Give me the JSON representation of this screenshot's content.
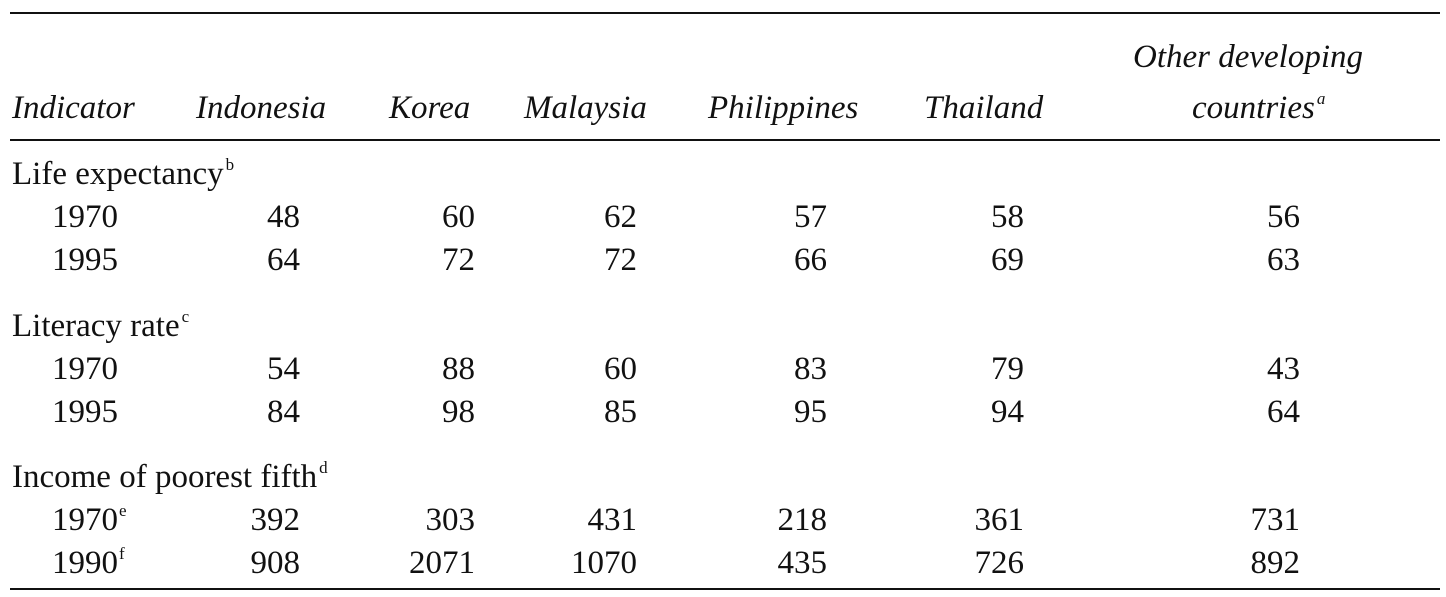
{
  "headers": {
    "indicator": "Indicator",
    "indonesia": "Indonesia",
    "korea": "Korea",
    "malaysia": "Malaysia",
    "philippines": "Philippines",
    "thailand": "Thailand",
    "other_line1": "Other developing",
    "other_line2": "countries",
    "other_note": "a"
  },
  "sections": [
    {
      "label": "Life expectancy",
      "note": "b",
      "rows": [
        {
          "year": "1970",
          "note": "",
          "values": [
            "48",
            "60",
            "62",
            "57",
            "58",
            "56"
          ]
        },
        {
          "year": "1995",
          "note": "",
          "values": [
            "64",
            "72",
            "72",
            "66",
            "69",
            "63"
          ]
        }
      ]
    },
    {
      "label": "Literacy rate",
      "note": "c",
      "rows": [
        {
          "year": "1970",
          "note": "",
          "values": [
            "54",
            "88",
            "60",
            "83",
            "79",
            "43"
          ]
        },
        {
          "year": "1995",
          "note": "",
          "values": [
            "84",
            "98",
            "85",
            "95",
            "94",
            "64"
          ]
        }
      ]
    },
    {
      "label": "Income of poorest fifth",
      "note": "d",
      "rows": [
        {
          "year": "1970",
          "note": "e",
          "values": [
            "392",
            "303",
            "431",
            "218",
            "361",
            "731"
          ]
        },
        {
          "year": "1990",
          "note": "f",
          "values": [
            "908",
            "2071",
            "1070",
            "435",
            "726",
            "892"
          ]
        }
      ]
    }
  ]
}
